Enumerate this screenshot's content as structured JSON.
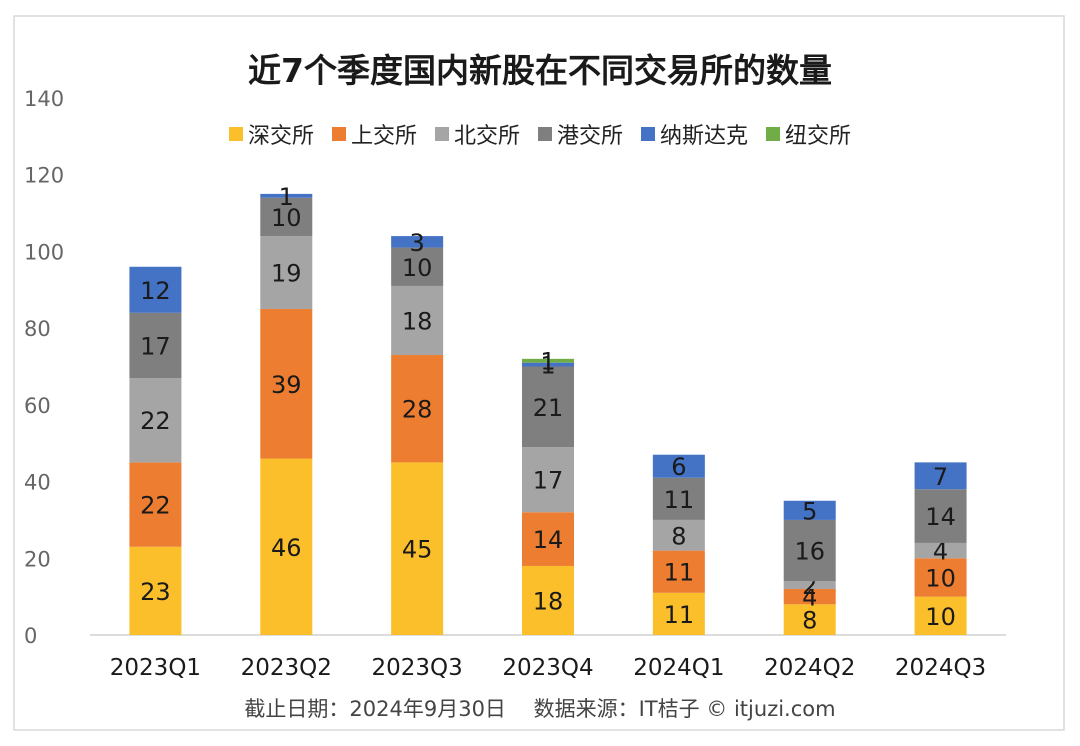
{
  "chart_data": {
    "type": "bar",
    "stacked": true,
    "title": "近7个季度国内新股在不同交易所的数量",
    "categories": [
      "2023Q1",
      "2023Q2",
      "2023Q3",
      "2023Q4",
      "2024Q1",
      "2024Q2",
      "2024Q3"
    ],
    "series": [
      {
        "name": "深交所",
        "color": "#FBBF2B",
        "values": [
          23,
          46,
          45,
          18,
          11,
          8,
          10
        ]
      },
      {
        "name": "上交所",
        "color": "#ED7D31",
        "values": [
          22,
          39,
          28,
          14,
          11,
          4,
          10
        ]
      },
      {
        "name": "北交所",
        "color": "#A5A5A5",
        "values": [
          22,
          19,
          18,
          17,
          8,
          2,
          4
        ]
      },
      {
        "name": "港交所",
        "color": "#7F7F7F",
        "values": [
          17,
          10,
          10,
          21,
          11,
          16,
          14
        ]
      },
      {
        "name": "纳斯达克",
        "color": "#4472C4",
        "values": [
          12,
          1,
          3,
          1,
          6,
          5,
          7
        ]
      },
      {
        "name": "纽交所",
        "color": "#70AD47",
        "values": [
          0,
          0,
          0,
          1,
          0,
          0,
          0
        ]
      }
    ],
    "ylim": [
      0,
      140
    ],
    "yticks": [
      0,
      20,
      40,
      60,
      80,
      100,
      120,
      140
    ],
    "grid": false,
    "legend_position": "top"
  },
  "footer": "截止日期：2024年9月30日　 数据来源：IT桔子 © itjuzi.com"
}
